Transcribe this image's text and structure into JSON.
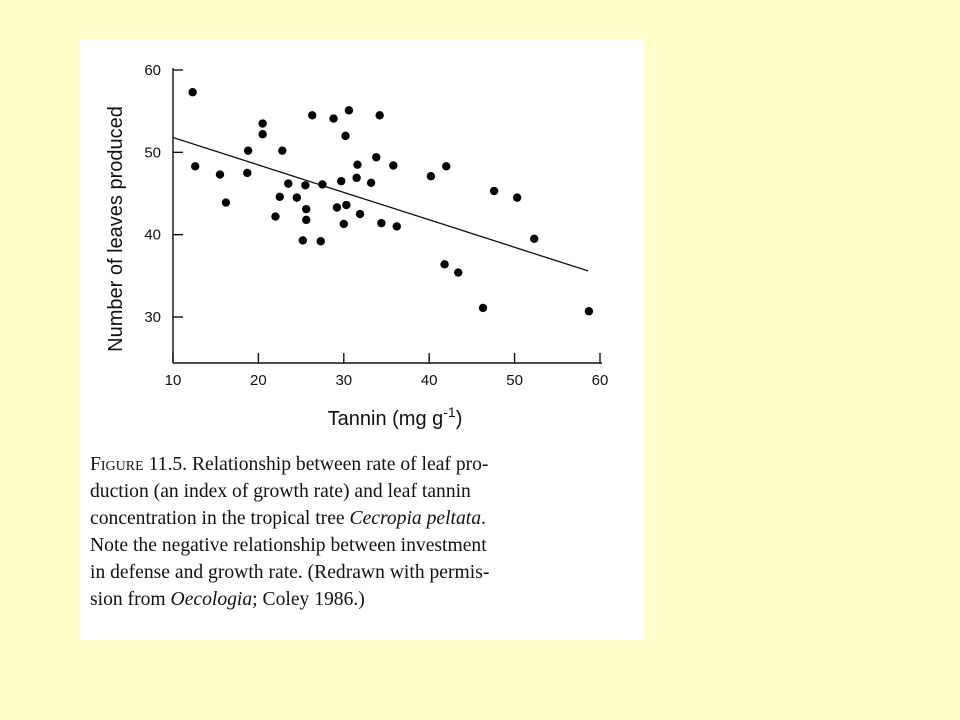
{
  "background_color": "#ffffcc",
  "panel_color": "#ffffff",
  "chart_data": {
    "type": "scatter",
    "xlabel": "Tannin (mg g-1)",
    "xlabel_parts": {
      "main": "Tannin (mg g",
      "superscript": "-1",
      "close": ")"
    },
    "ylabel": "Number of leaves produced",
    "xlim": [
      10,
      60
    ],
    "ylim": [
      30,
      60
    ],
    "x_ticks": [
      10,
      20,
      30,
      40,
      50,
      60
    ],
    "y_ticks": [
      30,
      40,
      50,
      60
    ],
    "grid": false,
    "marker_color": "#000000",
    "points": [
      {
        "x": 12.3,
        "y": 57.3
      },
      {
        "x": 12.6,
        "y": 48.3
      },
      {
        "x": 15.5,
        "y": 47.3
      },
      {
        "x": 16.2,
        "y": 43.9
      },
      {
        "x": 18.8,
        "y": 50.2
      },
      {
        "x": 18.7,
        "y": 47.5
      },
      {
        "x": 20.5,
        "y": 53.5
      },
      {
        "x": 20.5,
        "y": 52.2
      },
      {
        "x": 22.8,
        "y": 50.2
      },
      {
        "x": 22.0,
        "y": 42.2
      },
      {
        "x": 22.5,
        "y": 44.6
      },
      {
        "x": 23.5,
        "y": 46.2
      },
      {
        "x": 24.5,
        "y": 44.5
      },
      {
        "x": 25.2,
        "y": 39.3
      },
      {
        "x": 25.5,
        "y": 46.0
      },
      {
        "x": 25.6,
        "y": 43.1
      },
      {
        "x": 25.6,
        "y": 41.8
      },
      {
        "x": 26.3,
        "y": 54.5
      },
      {
        "x": 27.3,
        "y": 39.2
      },
      {
        "x": 27.5,
        "y": 46.1
      },
      {
        "x": 28.8,
        "y": 54.1
      },
      {
        "x": 29.2,
        "y": 43.3
      },
      {
        "x": 29.7,
        "y": 46.5
      },
      {
        "x": 30.0,
        "y": 41.3
      },
      {
        "x": 30.2,
        "y": 52.0
      },
      {
        "x": 30.3,
        "y": 43.6
      },
      {
        "x": 30.6,
        "y": 55.1
      },
      {
        "x": 31.5,
        "y": 46.9
      },
      {
        "x": 31.6,
        "y": 48.5
      },
      {
        "x": 31.9,
        "y": 42.5
      },
      {
        "x": 33.2,
        "y": 46.3
      },
      {
        "x": 33.8,
        "y": 49.4
      },
      {
        "x": 34.2,
        "y": 54.5
      },
      {
        "x": 34.4,
        "y": 41.4
      },
      {
        "x": 35.8,
        "y": 48.4
      },
      {
        "x": 36.2,
        "y": 41.0
      },
      {
        "x": 40.2,
        "y": 47.1
      },
      {
        "x": 41.8,
        "y": 36.4
      },
      {
        "x": 42.0,
        "y": 48.3
      },
      {
        "x": 43.4,
        "y": 35.4
      },
      {
        "x": 46.3,
        "y": 31.1
      },
      {
        "x": 47.6,
        "y": 45.3
      },
      {
        "x": 50.3,
        "y": 44.5
      },
      {
        "x": 52.3,
        "y": 39.5
      },
      {
        "x": 58.7,
        "y": 30.7
      }
    ],
    "trend_line": {
      "x": [
        10,
        58.6
      ],
      "y": [
        51.8,
        35.6
      ]
    }
  },
  "caption": {
    "label": "Figure",
    "number": "11.5.",
    "line1_rest": "Relationship between rate of leaf pro-",
    "line2": "duction (an index of growth rate) and leaf tannin",
    "line3_start": "concentration in the tropical tree ",
    "line3_italic": "Cecropia peltata",
    "line3_end": ".",
    "line4": "Note the negative relationship between investment",
    "line5": "in defense and growth rate. (Redrawn with permis-",
    "line6_start": "sion from ",
    "line6_italic": "Oecologia",
    "line6_end": "; Coley 1986.)"
  }
}
